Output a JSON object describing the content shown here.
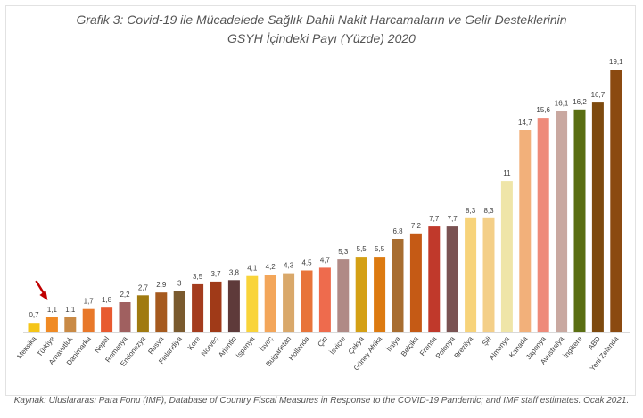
{
  "title_line1": "Grafik 3: Covid-19 ile Mücadelede Sağlık Dahil Nakit Harcamaların ve Gelir Desteklerinin",
  "title_line2": "GSYH İçindeki Payı (Yüzde) 2020",
  "source": "Kaynak: Uluslararası Para Fonu (IMF), Database of Country Fiscal Measures in Response to the COVID-19 Pandemic; and IMF staff estimates. Ocak 2021.",
  "chart_data": {
    "type": "bar",
    "title": "Grafik 3: Covid-19 ile Mücadelede Sağlık Dahil Nakit Harcamaların ve Gelir Desteklerinin GSYH İçindeki Payı (Yüzde) 2020",
    "xlabel": "",
    "ylabel": "",
    "ylim": [
      0,
      19.1
    ],
    "grid": false,
    "legend": "none",
    "highlighted_category": "Türkiye",
    "categories": [
      "Meksika",
      "Türkiye",
      "Arnavutluk",
      "Danimarka",
      "Nepal",
      "Romanya",
      "Endonezya",
      "Rusya",
      "Finlandiya",
      "Kore",
      "Norveç",
      "Arjantin",
      "İspanya",
      "İsveç",
      "Bulgaristan",
      "Hollanda",
      "Çin",
      "İsviçre",
      "Çekya",
      "Güney Afrika",
      "İtalya",
      "Belçika",
      "Fransa",
      "Polonya",
      "Brezilya",
      "Şili",
      "Almanya",
      "Kanada",
      "Japonya",
      "Avustralya",
      "İngiltere",
      "ABD",
      "Yeni Zelanda"
    ],
    "values": [
      0.7,
      1.1,
      1.1,
      1.7,
      1.8,
      2.2,
      2.7,
      2.9,
      3,
      3.5,
      3.7,
      3.8,
      4.1,
      4.2,
      4.3,
      4.5,
      4.7,
      5.3,
      5.5,
      5.5,
      6.8,
      7.2,
      7.7,
      7.7,
      8.3,
      8.3,
      11,
      14.7,
      15.6,
      16.1,
      16.2,
      16.7,
      19.1
    ],
    "value_labels": [
      "0,7",
      "1,1",
      "1,1",
      "1,7",
      "1,8",
      "2,2",
      "2,7",
      "2,9",
      "3",
      "3,5",
      "3,7",
      "3,8",
      "4,1",
      "4,2",
      "4,3",
      "4,5",
      "4,7",
      "5,3",
      "5,5",
      "5,5",
      "6,8",
      "7,2",
      "7,7",
      "7,7",
      "8,3",
      "8,3",
      "11",
      "14,7",
      "15,6",
      "16,1",
      "16,2",
      "16,7",
      "19,1"
    ],
    "colors": [
      "#F5C518",
      "#F08A24",
      "#C98A45",
      "#E8782A",
      "#E85A30",
      "#A06060",
      "#A07A10",
      "#A65A1E",
      "#7A5A2E",
      "#A43C1E",
      "#A03A18",
      "#5E3A3A",
      "#F9D43A",
      "#F3A65A",
      "#D9A86A",
      "#E8743A",
      "#EE6B4D",
      "#B08A86",
      "#D4A015",
      "#DC7A10",
      "#A86D30",
      "#C55A15",
      "#C0392B",
      "#7A5252",
      "#F7D37A",
      "#F4CF88",
      "#EFE5A8",
      "#F2B07A",
      "#EE8A7A",
      "#C9A8A0",
      "#5A6E12",
      "#7E4A0E",
      "#8B4A10"
    ]
  }
}
